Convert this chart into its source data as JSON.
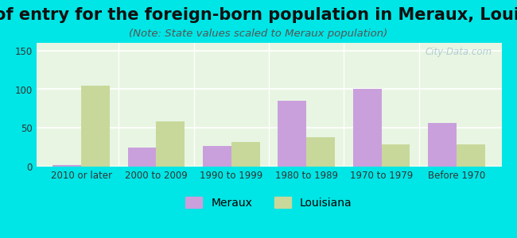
{
  "title": "Year of entry for the foreign-born population in Meraux, Louisiana",
  "subtitle": "(Note: State values scaled to Meraux population)",
  "categories": [
    "2010 or later",
    "2000 to 2009",
    "1990 to 1999",
    "1980 to 1989",
    "1970 to 1979",
    "Before 1970"
  ],
  "meraux_values": [
    2,
    25,
    27,
    85,
    100,
    56
  ],
  "louisiana_values": [
    105,
    58,
    32,
    38,
    29,
    29
  ],
  "meraux_color": "#c9a0dc",
  "louisiana_color": "#c8d89a",
  "background_color": "#00e5e5",
  "plot_bg_top": "#e8f5e2",
  "plot_bg_bottom": "#f5fff5",
  "ylim": [
    0,
    160
  ],
  "yticks": [
    0,
    50,
    100,
    150
  ],
  "bar_width": 0.38,
  "title_fontsize": 15,
  "subtitle_fontsize": 9.5,
  "tick_fontsize": 8.5,
  "legend_fontsize": 10,
  "watermark": "City-Data.com"
}
